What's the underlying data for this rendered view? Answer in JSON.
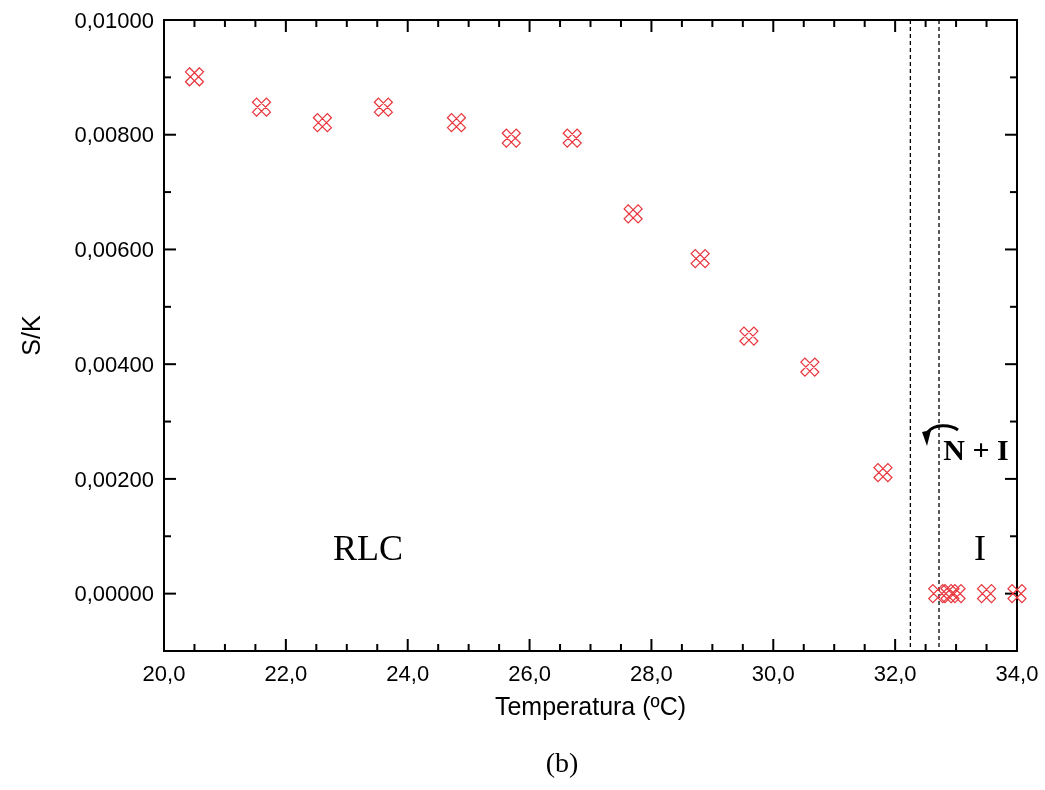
{
  "chart_data": {
    "type": "scatter",
    "xlabel": "Temperatura (ºC)",
    "ylabel": "S/K",
    "x": [
      20.5,
      21.6,
      22.6,
      23.6,
      24.8,
      25.7,
      26.7,
      27.7,
      28.8,
      29.6,
      30.6,
      31.8,
      32.7,
      32.9,
      33.0,
      33.5,
      34.0
    ],
    "series": [
      {
        "color": "#e8343c",
        "values": [
          0.00901,
          0.00848,
          0.00821,
          0.00848,
          0.00821,
          0.00794,
          0.00794,
          0.00662,
          0.00584,
          0.00449,
          0.00395,
          0.00211,
          0,
          0,
          0,
          0,
          0
        ]
      }
    ],
    "marker": "cross",
    "xlim": [
      20,
      34
    ],
    "ylim": [
      -0.001,
      0.01
    ],
    "xticks": [
      {
        "value": 20,
        "label": "20,0"
      },
      {
        "value": 20.5,
        "label": null
      },
      {
        "value": 21,
        "label": null
      },
      {
        "value": 21.5,
        "label": null
      },
      {
        "value": 22,
        "label": "22,0"
      },
      {
        "value": 22.5,
        "label": null
      },
      {
        "value": 23,
        "label": null
      },
      {
        "value": 23.5,
        "label": null
      },
      {
        "value": 24,
        "label": "24,0"
      },
      {
        "value": 24.5,
        "label": null
      },
      {
        "value": 25,
        "label": null
      },
      {
        "value": 25.5,
        "label": null
      },
      {
        "value": 26,
        "label": "26,0"
      },
      {
        "value": 26.5,
        "label": null
      },
      {
        "value": 27,
        "label": null
      },
      {
        "value": 27.5,
        "label": null
      },
      {
        "value": 28,
        "label": "28,0"
      },
      {
        "value": 28.5,
        "label": null
      },
      {
        "value": 29,
        "label": null
      },
      {
        "value": 29.5,
        "label": null
      },
      {
        "value": 30,
        "label": "30,0"
      },
      {
        "value": 30.5,
        "label": null
      },
      {
        "value": 31,
        "label": null
      },
      {
        "value": 31.5,
        "label": null
      },
      {
        "value": 32,
        "label": "32,0"
      },
      {
        "value": 32.5,
        "label": null
      },
      {
        "value": 33,
        "label": null
      },
      {
        "value": 33.5,
        "label": null
      },
      {
        "value": 34,
        "label": "34,0"
      }
    ],
    "yticks": [
      {
        "value": -0.001,
        "label": null
      },
      {
        "value": 0,
        "label": "0,00000"
      },
      {
        "value": 0.001,
        "label": null
      },
      {
        "value": 0.002,
        "label": "0,00200"
      },
      {
        "value": 0.003,
        "label": null
      },
      {
        "value": 0.004,
        "label": "0,00400"
      },
      {
        "value": 0.005,
        "label": null
      },
      {
        "value": 0.006,
        "label": "0,00600"
      },
      {
        "value": 0.007,
        "label": null
      },
      {
        "value": 0.008,
        "label": "0,00800"
      },
      {
        "value": 0.009,
        "label": null
      },
      {
        "value": 0.01,
        "label": "0,01000"
      }
    ],
    "grid": false,
    "ref_lines": [
      {
        "axis": "x",
        "value": 32.25,
        "color": "#000000",
        "line_style": "dashed"
      },
      {
        "axis": "x",
        "value": 32.72,
        "color": "#000000",
        "line_style": "dashed"
      }
    ],
    "annotations": [
      "RLC",
      "N + I",
      "I",
      "(b)"
    ]
  }
}
